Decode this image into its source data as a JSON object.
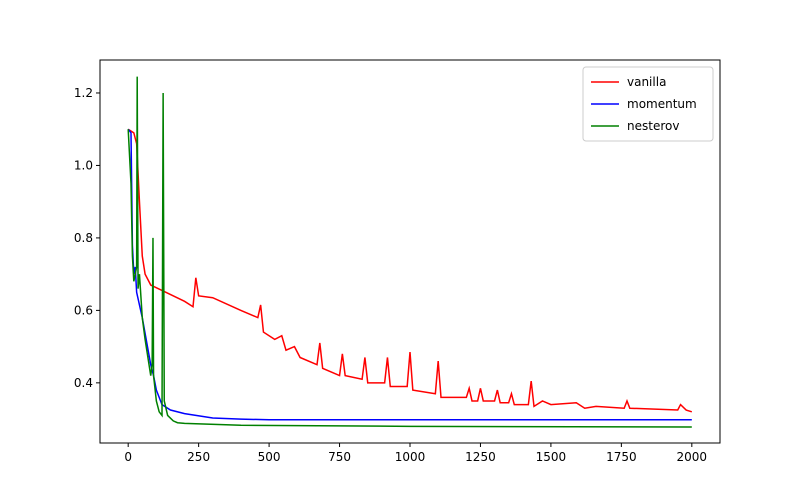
{
  "chart_data": {
    "type": "line",
    "xlim": [
      -100,
      2100
    ],
    "ylim": [
      0.234,
      1.291
    ],
    "xticks": [
      0,
      250,
      500,
      750,
      1000,
      1250,
      1500,
      1750,
      2000
    ],
    "yticks": [
      0.4,
      0.6,
      0.8,
      {
        "value": 1,
        "label": "1.0"
      },
      1.2
    ],
    "legend": "upper right",
    "series": [
      {
        "name": "vanilla",
        "color": "#ff0000",
        "x": [
          0,
          20,
          30,
          40,
          50,
          60,
          80,
          120,
          200,
          230,
          240,
          250,
          300,
          400,
          460,
          470,
          480,
          520,
          545,
          560,
          590,
          610,
          670,
          680,
          690,
          750,
          760,
          770,
          830,
          840,
          850,
          910,
          920,
          930,
          990,
          1000,
          1010,
          1090,
          1100,
          1110,
          1200,
          1210,
          1220,
          1240,
          1250,
          1260,
          1300,
          1310,
          1320,
          1350,
          1360,
          1370,
          1420,
          1430,
          1440,
          1470,
          1500,
          1590,
          1620,
          1660,
          1760,
          1770,
          1780,
          1950,
          1960,
          1980,
          2000
        ],
        "values": [
          1.1,
          1.09,
          1.06,
          0.9,
          0.75,
          0.7,
          0.67,
          0.655,
          0.625,
          0.61,
          0.69,
          0.64,
          0.635,
          0.6,
          0.58,
          0.615,
          0.54,
          0.52,
          0.53,
          0.49,
          0.5,
          0.47,
          0.45,
          0.51,
          0.44,
          0.42,
          0.48,
          0.42,
          0.41,
          0.47,
          0.4,
          0.4,
          0.47,
          0.39,
          0.39,
          0.485,
          0.38,
          0.37,
          0.46,
          0.36,
          0.36,
          0.385,
          0.35,
          0.35,
          0.385,
          0.35,
          0.35,
          0.38,
          0.345,
          0.345,
          0.37,
          0.34,
          0.34,
          0.405,
          0.335,
          0.35,
          0.34,
          0.345,
          0.33,
          0.335,
          0.33,
          0.35,
          0.33,
          0.325,
          0.34,
          0.325,
          0.32
        ]
      },
      {
        "name": "momentum",
        "color": "#0000ff",
        "x": [
          0,
          10,
          15,
          20,
          25,
          30,
          50,
          80,
          90,
          100,
          120,
          150,
          200,
          300,
          400,
          500,
          1000,
          2000
        ],
        "values": [
          1.1,
          1.09,
          0.78,
          0.7,
          0.72,
          0.65,
          0.58,
          0.45,
          0.42,
          0.38,
          0.34,
          0.325,
          0.315,
          0.303,
          0.3,
          0.298,
          0.298,
          0.298
        ]
      },
      {
        "name": "nesterov",
        "color": "#008000",
        "x": [
          0,
          10,
          15,
          20,
          30,
          32,
          35,
          40,
          50,
          60,
          80,
          85,
          88,
          90,
          100,
          110,
          120,
          124,
          128,
          140,
          160,
          175,
          200,
          400,
          1000,
          2000
        ],
        "values": [
          1.1,
          0.95,
          0.75,
          0.68,
          0.72,
          1.245,
          0.66,
          0.7,
          0.58,
          0.52,
          0.42,
          0.45,
          0.8,
          0.42,
          0.35,
          0.32,
          0.31,
          1.2,
          0.35,
          0.31,
          0.295,
          0.29,
          0.288,
          0.283,
          0.28,
          0.278
        ]
      }
    ]
  }
}
